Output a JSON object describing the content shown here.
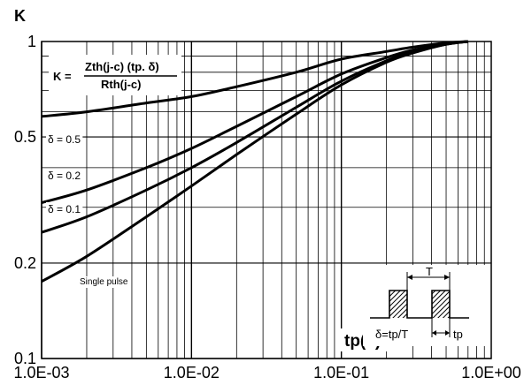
{
  "chart_data": {
    "type": "line",
    "ylabel": "K",
    "xlabel": "tp(s)",
    "x_scale": "log",
    "y_scale": "log",
    "xlim": [
      0.001,
      1.0
    ],
    "ylim": [
      0.1,
      1.0
    ],
    "x_ticks": [
      0.001,
      0.01,
      0.1,
      1.0
    ],
    "x_tick_labels": [
      "1.0E-03",
      "1.0E-02",
      "1.0E-01",
      "1.0E+00"
    ],
    "y_ticks": [
      0.1,
      0.2,
      0.5,
      1.0
    ],
    "y_tick_labels": [
      "0.1",
      "0.2",
      "0.5",
      "1"
    ],
    "grid": true,
    "formula": {
      "lhs": "K =",
      "numerator": "Zth(j-c) (tp. δ)",
      "denominator": "Rth(j-c)"
    },
    "series": [
      {
        "name": "δ = 0.5",
        "x": [
          0.001,
          0.002,
          0.005,
          0.01,
          0.02,
          0.05,
          0.1,
          0.2,
          0.3,
          0.5,
          0.7
        ],
        "y": [
          0.58,
          0.6,
          0.64,
          0.67,
          0.72,
          0.8,
          0.88,
          0.93,
          0.96,
          0.99,
          1.0
        ]
      },
      {
        "name": "δ = 0.2",
        "x": [
          0.001,
          0.002,
          0.005,
          0.01,
          0.02,
          0.05,
          0.1,
          0.2,
          0.3,
          0.5,
          0.7
        ],
        "y": [
          0.31,
          0.34,
          0.4,
          0.46,
          0.54,
          0.67,
          0.79,
          0.89,
          0.94,
          0.98,
          1.0
        ]
      },
      {
        "name": "δ = 0.1",
        "x": [
          0.001,
          0.002,
          0.005,
          0.01,
          0.02,
          0.05,
          0.1,
          0.2,
          0.3,
          0.5,
          0.7
        ],
        "y": [
          0.25,
          0.28,
          0.34,
          0.4,
          0.48,
          0.62,
          0.75,
          0.87,
          0.93,
          0.98,
          1.0
        ]
      },
      {
        "name": "Single pulse",
        "x": [
          0.001,
          0.002,
          0.005,
          0.01,
          0.02,
          0.05,
          0.1,
          0.2,
          0.3,
          0.5,
          0.7
        ],
        "y": [
          0.175,
          0.21,
          0.28,
          0.35,
          0.44,
          0.59,
          0.73,
          0.86,
          0.92,
          0.98,
          1.0
        ]
      }
    ],
    "inset": {
      "period_label": "T",
      "duty_label": "δ=tp/T",
      "pulse_label": "tp"
    }
  }
}
